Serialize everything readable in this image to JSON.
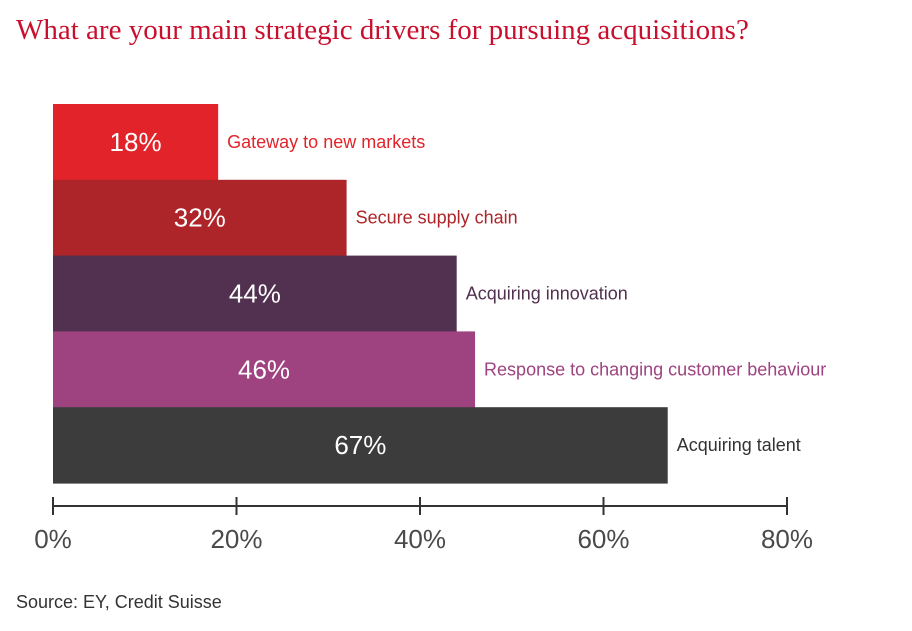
{
  "chart_data": {
    "type": "bar",
    "orientation": "horizontal",
    "title": "What are your main strategic drivers for pursuing acquisitions?",
    "categories": [
      "Gateway to new markets",
      "Secure supply chain",
      "Acquiring innovation",
      "Response to changing customer behaviour",
      "Acquiring talent"
    ],
    "values": [
      18,
      32,
      44,
      46,
      67
    ],
    "value_labels": [
      "18%",
      "32%",
      "44%",
      "46%",
      "67%"
    ],
    "colors": [
      "#e2232a",
      "#ad2528",
      "#52304f",
      "#9e4380",
      "#3c3c3c"
    ],
    "label_colors": [
      "#e2232a",
      "#ad2528",
      "#52304f",
      "#9e4380",
      "#333333"
    ],
    "xlim": [
      0,
      80
    ],
    "xticks": [
      0,
      20,
      40,
      60,
      80
    ],
    "xtick_labels": [
      "0%",
      "20%",
      "40%",
      "60%",
      "80%"
    ],
    "xlabel": "",
    "ylabel": "",
    "grid": false,
    "legend": "none"
  },
  "source": "Source: EY, Credit Suisse"
}
